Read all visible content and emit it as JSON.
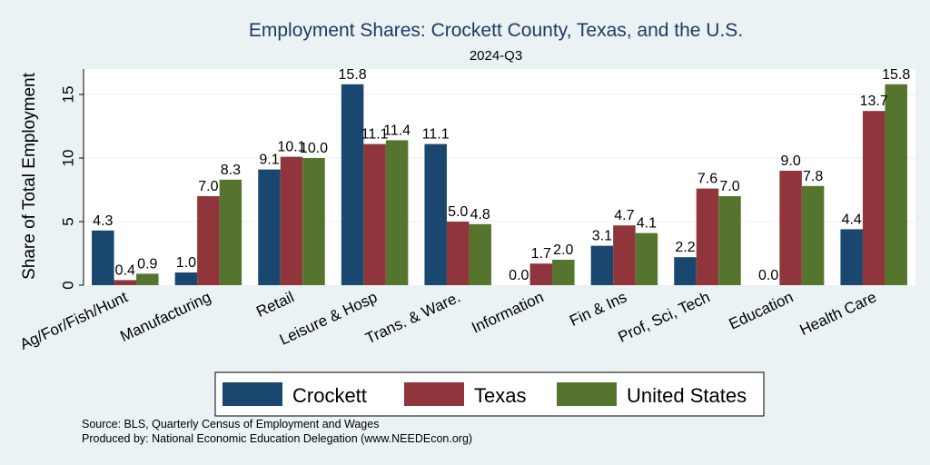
{
  "chart_data": {
    "type": "bar",
    "title": "Employment Shares: Crockett County, Texas, and the U.S.",
    "subtitle": "2024-Q3",
    "ylabel": "Share of Total Employment",
    "xlabel": "",
    "ylim": [
      0,
      17
    ],
    "yticks": [
      0,
      5,
      10,
      15
    ],
    "categories": [
      "Ag/For/Fish/Hunt",
      "Manufacturing",
      "Retail",
      "Leisure & Hosp",
      "Trans. & Ware.",
      "Information",
      "Fin & Ins",
      "Prof, Sci, Tech",
      "Education",
      "Health Care"
    ],
    "series": [
      {
        "name": "Crockett",
        "color": "#1a476f",
        "values": [
          4.3,
          1.0,
          9.1,
          15.8,
          11.1,
          0.0,
          3.1,
          2.2,
          0.0,
          4.4
        ],
        "labels": [
          "4.3",
          "1.0",
          "9.1",
          "15.8",
          "11.1",
          "0.0",
          "3.1",
          "2.2",
          "0.0",
          "4.4"
        ]
      },
      {
        "name": "Texas",
        "color": "#90353b",
        "values": [
          0.4,
          7.0,
          10.1,
          11.1,
          5.0,
          1.7,
          4.7,
          7.6,
          9.0,
          13.7
        ],
        "labels": [
          "0.4",
          "7.0",
          "10.1",
          "11.1",
          "5.0",
          "1.7",
          "4.7",
          "7.6",
          "9.0",
          "13.7"
        ]
      },
      {
        "name": "United States",
        "color": "#55752f",
        "values": [
          0.9,
          8.3,
          10.0,
          11.4,
          4.8,
          2.0,
          4.1,
          7.0,
          7.8,
          15.8
        ],
        "labels": [
          "0.9",
          "8.3",
          "10.0",
          "11.4",
          "4.8",
          "2.0",
          "4.1",
          "7.0",
          "7.8",
          "15.8"
        ]
      }
    ],
    "legend": {
      "placement": "bottom",
      "items": [
        "Crockett",
        "Texas",
        "United States"
      ]
    },
    "notes": [
      "Source: BLS, Quarterly Census of Employment and Wages",
      "Produced by: National Economic Education Delegation (www.NEEDEcon.org)"
    ],
    "grid": true
  }
}
